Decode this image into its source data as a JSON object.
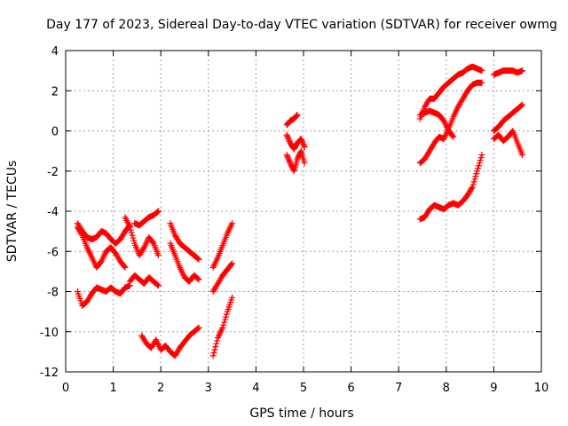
{
  "chart_data": {
    "type": "scatter",
    "title": "Day 177 of 2023, Sidereal Day-to-day VTEC variation (SDTVAR) for receiver owmg",
    "xlabel": "GPS time / hours",
    "ylabel": "SDTVAR / TECUs",
    "xlim": [
      0,
      10
    ],
    "ylim": [
      -12,
      4
    ],
    "xticks": [
      0,
      1,
      2,
      3,
      4,
      5,
      6,
      7,
      8,
      9,
      10
    ],
    "yticks": [
      4,
      2,
      0,
      -2,
      -4,
      -6,
      -8,
      -10,
      -12
    ],
    "grid": true,
    "marker": "plus",
    "color": "#ff0000",
    "series": [
      {
        "x": [
          0.25,
          0.35,
          0.45,
          0.55,
          0.65,
          0.75,
          0.85,
          0.95,
          1.05,
          1.15,
          1.25
        ],
        "y": [
          -4.8,
          -5.2,
          -5.8,
          -6.3,
          -6.8,
          -6.5,
          -6.0,
          -5.8,
          -6.1,
          -6.5,
          -6.8
        ]
      },
      {
        "x": [
          0.25,
          0.35,
          0.45,
          0.55,
          0.65,
          0.75,
          0.85,
          0.95,
          1.05,
          1.15,
          1.25,
          1.35
        ],
        "y": [
          -4.6,
          -5.0,
          -5.3,
          -5.4,
          -5.3,
          -5.0,
          -5.1,
          -5.4,
          -5.6,
          -5.4,
          -5.0,
          -4.7
        ]
      },
      {
        "x": [
          0.25,
          0.35,
          0.45,
          0.55,
          0.65,
          0.75,
          0.85,
          0.95,
          1.05,
          1.15,
          1.25,
          1.35
        ],
        "y": [
          -8.0,
          -8.7,
          -8.5,
          -8.1,
          -7.8,
          -7.9,
          -8.0,
          -7.8,
          -8.0,
          -8.1,
          -7.8,
          -7.7
        ]
      },
      {
        "x": [
          1.25,
          1.35,
          1.45,
          1.55,
          1.65,
          1.75,
          1.85,
          1.95
        ],
        "y": [
          -4.3,
          -4.8,
          -5.6,
          -6.2,
          -5.8,
          -5.3,
          -5.6,
          -6.2
        ]
      },
      {
        "x": [
          1.35,
          1.45,
          1.55,
          1.65,
          1.75,
          1.85,
          1.95
        ],
        "y": [
          -7.5,
          -7.2,
          -7.4,
          -7.6,
          -7.3,
          -7.5,
          -7.7
        ]
      },
      {
        "x": [
          1.6,
          1.7,
          1.8,
          1.9,
          2.0,
          2.1,
          2.2,
          2.3,
          2.4,
          2.5,
          2.6,
          2.7,
          2.8
        ],
        "y": [
          -10.2,
          -10.6,
          -10.8,
          -10.4,
          -10.9,
          -10.7,
          -11.0,
          -11.2,
          -10.8,
          -10.5,
          -10.2,
          -10.0,
          -9.8
        ]
      },
      {
        "x": [
          1.45,
          1.55,
          1.65,
          1.75,
          1.85,
          1.95
        ],
        "y": [
          -4.6,
          -4.7,
          -4.5,
          -4.3,
          -4.2,
          -4.0
        ]
      },
      {
        "x": [
          2.2,
          2.3,
          2.4,
          2.5,
          2.6,
          2.7,
          2.8
        ],
        "y": [
          -4.6,
          -5.2,
          -5.6,
          -5.8,
          -6.0,
          -6.2,
          -6.4
        ]
      },
      {
        "x": [
          2.2,
          2.3,
          2.4,
          2.5,
          2.6,
          2.7,
          2.8
        ],
        "y": [
          -5.6,
          -6.2,
          -6.8,
          -7.3,
          -7.5,
          -7.2,
          -7.4
        ]
      },
      {
        "x": [
          3.1,
          3.2,
          3.3,
          3.4,
          3.5
        ],
        "y": [
          -11.2,
          -10.3,
          -9.8,
          -9.0,
          -8.3
        ]
      },
      {
        "x": [
          3.1,
          3.2,
          3.3,
          3.4,
          3.5
        ],
        "y": [
          -8.0,
          -7.6,
          -7.2,
          -6.9,
          -6.6
        ]
      },
      {
        "x": [
          3.1,
          3.2,
          3.3,
          3.4,
          3.5
        ],
        "y": [
          -6.8,
          -6.3,
          -5.7,
          -5.1,
          -4.6
        ]
      },
      {
        "x": [
          4.65,
          4.72,
          4.8,
          4.87
        ],
        "y": [
          0.3,
          0.5,
          0.6,
          0.8
        ]
      },
      {
        "x": [
          4.65,
          4.72,
          4.8,
          4.87,
          4.95,
          5.02
        ],
        "y": [
          -1.2,
          -1.6,
          -2.0,
          -1.4,
          -1.0,
          -1.6
        ]
      },
      {
        "x": [
          4.65,
          4.72,
          4.8,
          4.87,
          4.95,
          5.02
        ],
        "y": [
          -0.2,
          -0.6,
          -0.9,
          -0.6,
          -0.4,
          -0.8
        ]
      },
      {
        "x": [
          7.45,
          7.55,
          7.65,
          7.75,
          7.85,
          7.95,
          8.05,
          8.15,
          8.25,
          8.35,
          8.45,
          8.55,
          8.65,
          8.75
        ],
        "y": [
          0.6,
          1.2,
          1.6,
          1.6,
          1.9,
          2.2,
          2.4,
          2.6,
          2.8,
          2.9,
          3.1,
          3.2,
          3.1,
          3.0
        ]
      },
      {
        "x": [
          7.45,
          7.55,
          7.65,
          7.75,
          7.85,
          7.95,
          8.05,
          8.15,
          8.25,
          8.35,
          8.45,
          8.55,
          8.65,
          8.75
        ],
        "y": [
          -4.4,
          -4.3,
          -3.9,
          -3.7,
          -3.8,
          -3.9,
          -3.7,
          -3.6,
          -3.7,
          -3.5,
          -3.2,
          -2.8,
          -2.0,
          -1.2
        ]
      },
      {
        "x": [
          7.45,
          7.55,
          7.65,
          7.75,
          7.85,
          7.95,
          8.05,
          8.15,
          8.25,
          8.35,
          8.45,
          8.55,
          8.65,
          8.75
        ],
        "y": [
          -1.6,
          -1.4,
          -1.0,
          -0.6,
          -0.3,
          -0.4,
          0.1,
          0.7,
          1.2,
          1.6,
          2.0,
          2.3,
          2.4,
          2.4
        ]
      },
      {
        "x": [
          7.45,
          7.55,
          7.65,
          7.75,
          7.85,
          7.95,
          8.05,
          8.15
        ],
        "y": [
          0.8,
          0.9,
          1.0,
          0.9,
          0.8,
          0.5,
          0.0,
          -0.3
        ]
      },
      {
        "x": [
          9.0,
          9.1,
          9.2,
          9.3,
          9.4,
          9.5,
          9.6
        ],
        "y": [
          2.8,
          2.9,
          3.0,
          3.0,
          3.0,
          2.9,
          3.0
        ]
      },
      {
        "x": [
          9.0,
          9.1,
          9.2,
          9.3,
          9.4,
          9.5,
          9.6
        ],
        "y": [
          0.0,
          0.2,
          0.5,
          0.7,
          0.9,
          1.1,
          1.3
        ]
      },
      {
        "x": [
          9.0,
          9.1,
          9.2,
          9.3,
          9.4,
          9.5,
          9.6
        ],
        "y": [
          -0.4,
          -0.2,
          -0.5,
          -0.3,
          0.0,
          -0.6,
          -1.2
        ]
      }
    ]
  }
}
